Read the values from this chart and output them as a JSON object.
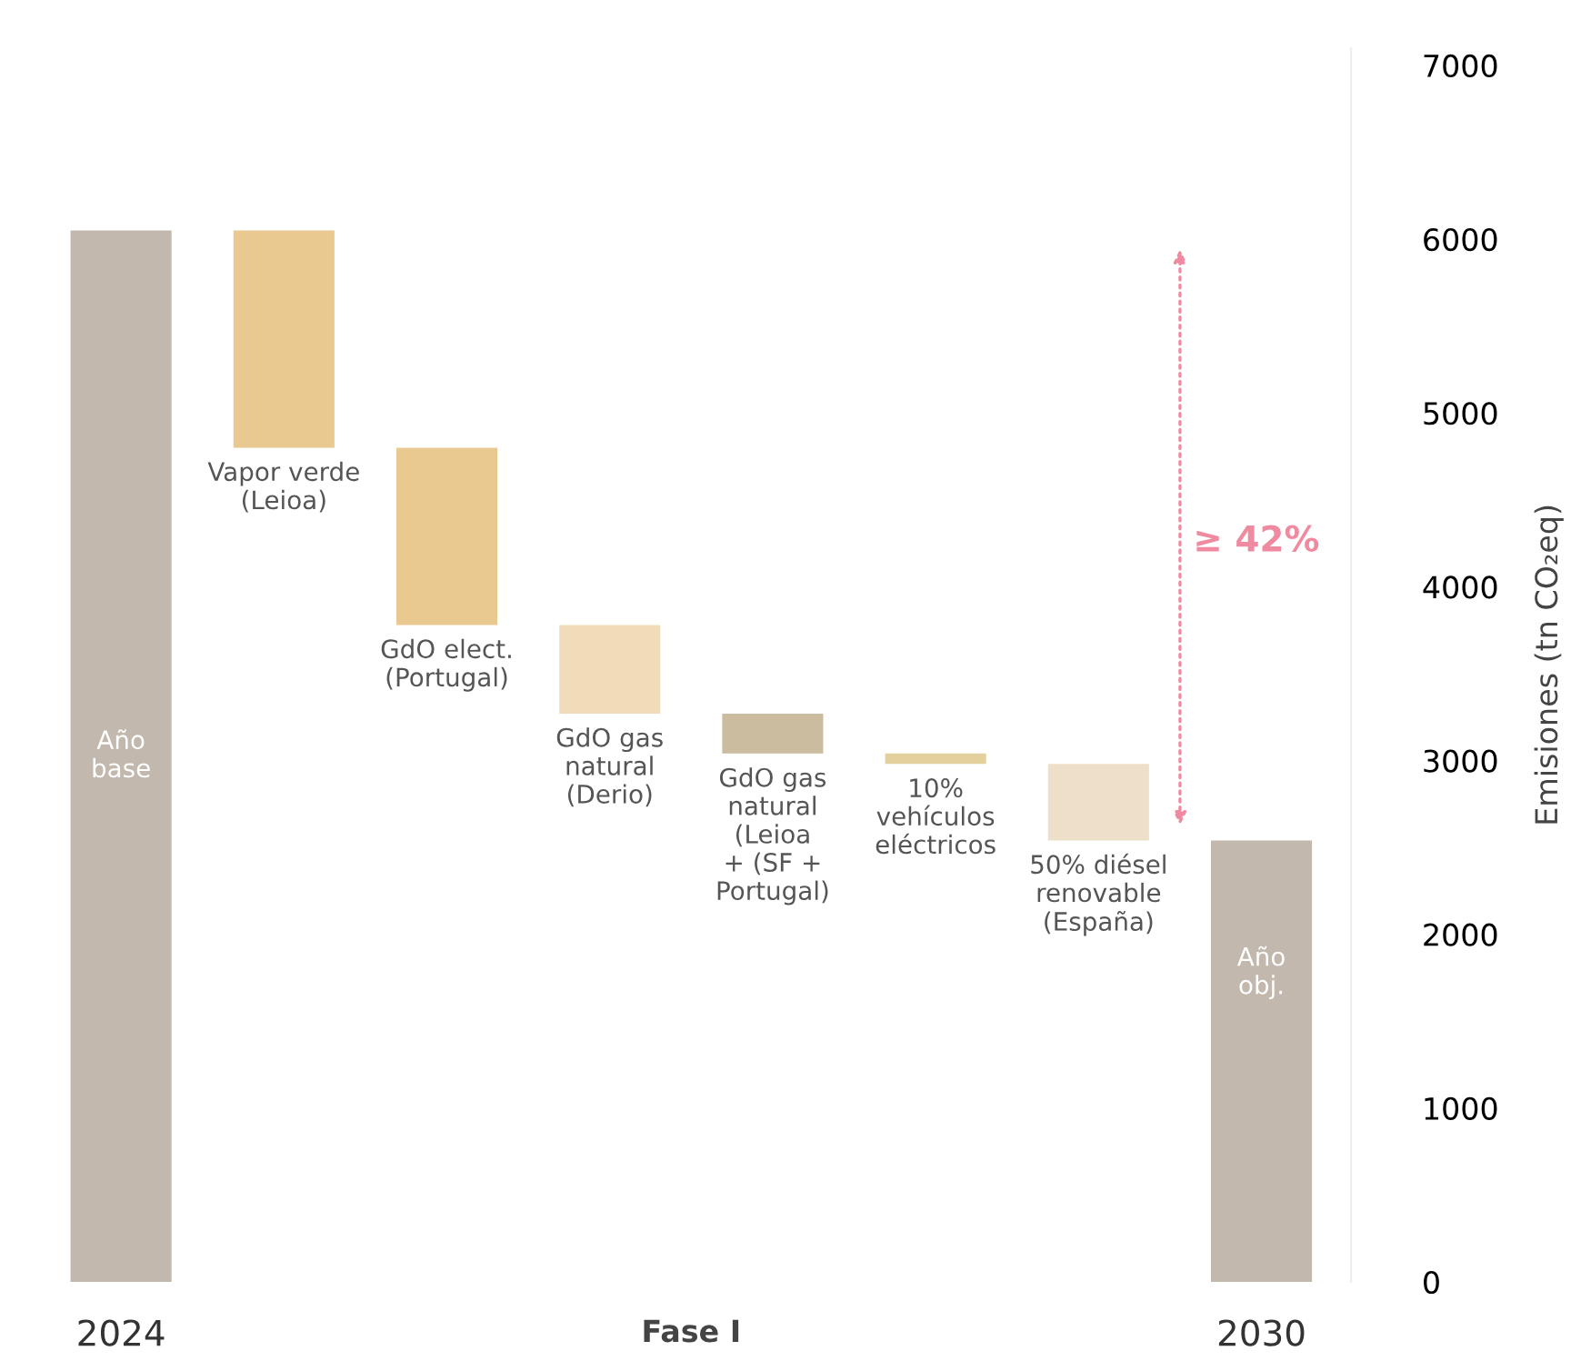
{
  "chart_data": {
    "type": "bar",
    "ylabel": "Emisiones (tn CO₂eq)",
    "categories": [
      "Año\nbase",
      "Vapor verde\n(Leioa)",
      "GdO elect.\n(Portugal)",
      "GdO gas\nnatural\n(Derio)",
      "GdO gas\nnatural\n(Leioa\n+ (SF +\nPortugal)",
      "10%\nvehículos\neléctricos",
      "50% diésel\nrenovable\n(España)",
      "Año\nobj."
    ],
    "values": [
      6050,
      1250,
      1020,
      510,
      230,
      60,
      440,
      2540
    ],
    "base": [
      0,
      4800,
      3780,
      3270,
      3040,
      2980,
      2540,
      0
    ],
    "colors": [
      "#c2b8ad",
      "#e9c98f",
      "#e9c98f",
      "#f0dcb8",
      "#cbbb9f",
      "#e2d19c",
      "#eee0c8",
      "#c2b8ad"
    ],
    "ylim": [
      0,
      7100
    ],
    "yticks": [
      0,
      1000,
      2000,
      3000,
      4000,
      5000,
      6000,
      7000
    ],
    "grid": false,
    "annotations": [
      "2024",
      "Fase I",
      "2030",
      "≥ 42%"
    ]
  }
}
